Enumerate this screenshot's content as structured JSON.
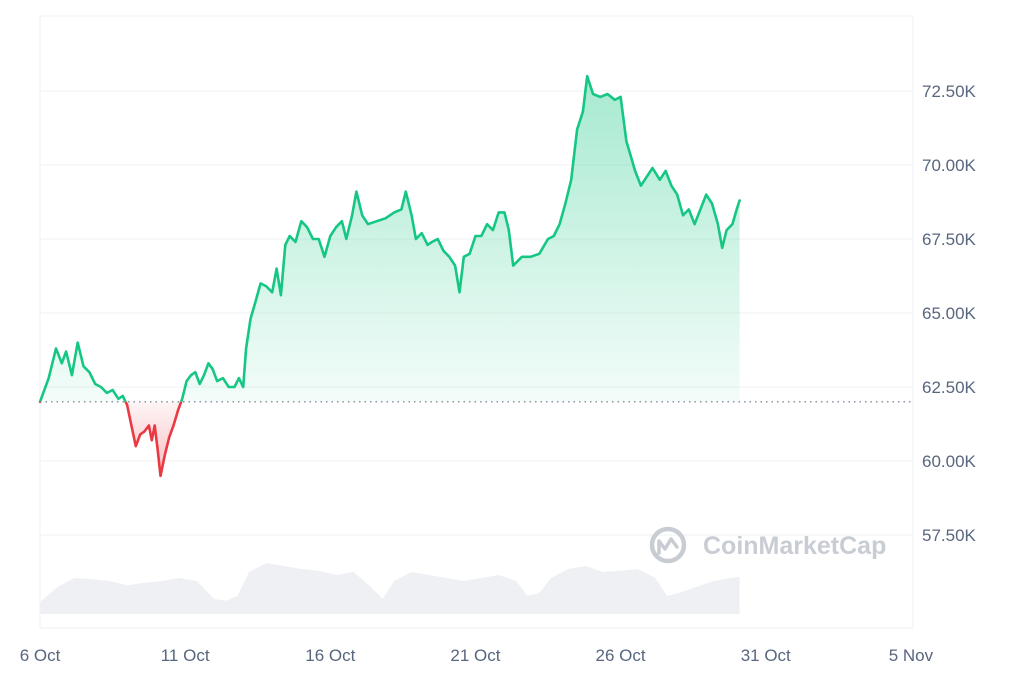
{
  "chart_data": {
    "type": "area",
    "title": "",
    "xlabel": "",
    "ylabel": "",
    "x_range": [
      "6 Oct",
      "6 Nov"
    ],
    "ylim": [
      55000,
      75000
    ],
    "baseline": 62000,
    "baseline_style": "dotted",
    "grid": "horizontal",
    "legend": "none",
    "y_axis_side": "right",
    "x_ticks": [
      {
        "label": "6 Oct",
        "day": 0
      },
      {
        "label": "11 Oct",
        "day": 5
      },
      {
        "label": "16 Oct",
        "day": 10
      },
      {
        "label": "21 Oct",
        "day": 15
      },
      {
        "label": "26 Oct",
        "day": 20
      },
      {
        "label": "31 Oct",
        "day": 25
      },
      {
        "label": "5 Nov",
        "day": 30
      }
    ],
    "y_ticks": [
      {
        "label": "57.50K",
        "value": 57500
      },
      {
        "label": "60.00K",
        "value": 60000
      },
      {
        "label": "62.50K",
        "value": 62500
      },
      {
        "label": "65.00K",
        "value": 65000
      },
      {
        "label": "67.50K",
        "value": 67500
      },
      {
        "label": "70.00K",
        "value": 70000
      },
      {
        "label": "72.50K",
        "value": 72500
      }
    ],
    "series": [
      {
        "points": [
          [
            0.0,
            62000
          ],
          [
            0.3,
            62800
          ],
          [
            0.55,
            63800
          ],
          [
            0.75,
            63300
          ],
          [
            0.9,
            63700
          ],
          [
            1.1,
            62900
          ],
          [
            1.3,
            64000
          ],
          [
            1.5,
            63200
          ],
          [
            1.7,
            63000
          ],
          [
            1.9,
            62600
          ],
          [
            2.1,
            62500
          ],
          [
            2.3,
            62300
          ],
          [
            2.5,
            62400
          ],
          [
            2.7,
            62100
          ],
          [
            2.85,
            62200
          ],
          [
            3.0,
            61900
          ],
          [
            3.15,
            61200
          ],
          [
            3.3,
            60500
          ],
          [
            3.45,
            60900
          ],
          [
            3.6,
            61000
          ],
          [
            3.75,
            61200
          ],
          [
            3.85,
            60700
          ],
          [
            3.95,
            61200
          ],
          [
            4.05,
            60400
          ],
          [
            4.15,
            59500
          ],
          [
            4.3,
            60200
          ],
          [
            4.45,
            60800
          ],
          [
            4.6,
            61200
          ],
          [
            4.75,
            61700
          ],
          [
            4.9,
            62100
          ],
          [
            5.05,
            62700
          ],
          [
            5.2,
            62900
          ],
          [
            5.35,
            63000
          ],
          [
            5.5,
            62600
          ],
          [
            5.65,
            62900
          ],
          [
            5.8,
            63300
          ],
          [
            5.95,
            63100
          ],
          [
            6.1,
            62700
          ],
          [
            6.3,
            62800
          ],
          [
            6.5,
            62500
          ],
          [
            6.7,
            62500
          ],
          [
            6.85,
            62800
          ],
          [
            7.0,
            62500
          ],
          [
            7.1,
            63800
          ],
          [
            7.25,
            64800
          ],
          [
            7.4,
            65300
          ],
          [
            7.6,
            66000
          ],
          [
            7.8,
            65900
          ],
          [
            8.0,
            65700
          ],
          [
            8.15,
            66500
          ],
          [
            8.3,
            65600
          ],
          [
            8.45,
            67300
          ],
          [
            8.6,
            67600
          ],
          [
            8.8,
            67400
          ],
          [
            9.0,
            68100
          ],
          [
            9.2,
            67900
          ],
          [
            9.4,
            67500
          ],
          [
            9.6,
            67500
          ],
          [
            9.8,
            66900
          ],
          [
            10.0,
            67600
          ],
          [
            10.2,
            67900
          ],
          [
            10.4,
            68100
          ],
          [
            10.55,
            67500
          ],
          [
            10.75,
            68300
          ],
          [
            10.9,
            69100
          ],
          [
            11.1,
            68300
          ],
          [
            11.3,
            68000
          ],
          [
            11.6,
            68100
          ],
          [
            11.9,
            68200
          ],
          [
            12.2,
            68400
          ],
          [
            12.45,
            68500
          ],
          [
            12.6,
            69100
          ],
          [
            12.8,
            68300
          ],
          [
            12.95,
            67500
          ],
          [
            13.15,
            67700
          ],
          [
            13.35,
            67300
          ],
          [
            13.5,
            67400
          ],
          [
            13.7,
            67500
          ],
          [
            13.9,
            67100
          ],
          [
            14.1,
            66900
          ],
          [
            14.3,
            66600
          ],
          [
            14.45,
            65700
          ],
          [
            14.6,
            66900
          ],
          [
            14.8,
            67000
          ],
          [
            15.0,
            67600
          ],
          [
            15.2,
            67600
          ],
          [
            15.4,
            68000
          ],
          [
            15.6,
            67800
          ],
          [
            15.8,
            68400
          ],
          [
            16.0,
            68400
          ],
          [
            16.15,
            67800
          ],
          [
            16.3,
            66600
          ],
          [
            16.6,
            66900
          ],
          [
            16.9,
            66900
          ],
          [
            17.2,
            67000
          ],
          [
            17.5,
            67500
          ],
          [
            17.7,
            67600
          ],
          [
            17.9,
            68000
          ],
          [
            18.1,
            68700
          ],
          [
            18.3,
            69500
          ],
          [
            18.5,
            71200
          ],
          [
            18.7,
            71800
          ],
          [
            18.85,
            73000
          ],
          [
            19.05,
            72400
          ],
          [
            19.3,
            72300
          ],
          [
            19.55,
            72400
          ],
          [
            19.8,
            72200
          ],
          [
            20.0,
            72300
          ],
          [
            20.2,
            70800
          ],
          [
            20.35,
            70300
          ],
          [
            20.5,
            69800
          ],
          [
            20.7,
            69300
          ],
          [
            20.9,
            69600
          ],
          [
            21.1,
            69900
          ],
          [
            21.35,
            69500
          ],
          [
            21.55,
            69800
          ],
          [
            21.75,
            69300
          ],
          [
            21.95,
            69000
          ],
          [
            22.15,
            68300
          ],
          [
            22.35,
            68500
          ],
          [
            22.55,
            68000
          ],
          [
            22.75,
            68500
          ],
          [
            22.95,
            69000
          ],
          [
            23.15,
            68700
          ],
          [
            23.35,
            68000
          ],
          [
            23.5,
            67200
          ],
          [
            23.65,
            67800
          ],
          [
            23.85,
            68000
          ],
          [
            24.0,
            68500
          ],
          [
            24.1,
            68800
          ]
        ]
      }
    ],
    "volume": [
      {
        "day": 0.0,
        "value": 0.2
      },
      {
        "day": 0.6,
        "value": 0.45
      },
      {
        "day": 1.2,
        "value": 0.6
      },
      {
        "day": 1.8,
        "value": 0.58
      },
      {
        "day": 2.4,
        "value": 0.55
      },
      {
        "day": 3.0,
        "value": 0.48
      },
      {
        "day": 3.6,
        "value": 0.52
      },
      {
        "day": 4.2,
        "value": 0.55
      },
      {
        "day": 4.8,
        "value": 0.6
      },
      {
        "day": 5.4,
        "value": 0.55
      },
      {
        "day": 6.0,
        "value": 0.25
      },
      {
        "day": 6.4,
        "value": 0.22
      },
      {
        "day": 6.8,
        "value": 0.3
      },
      {
        "day": 7.2,
        "value": 0.7
      },
      {
        "day": 7.8,
        "value": 0.85
      },
      {
        "day": 8.4,
        "value": 0.8
      },
      {
        "day": 9.0,
        "value": 0.75
      },
      {
        "day": 9.6,
        "value": 0.72
      },
      {
        "day": 10.2,
        "value": 0.65
      },
      {
        "day": 10.8,
        "value": 0.7
      },
      {
        "day": 11.4,
        "value": 0.45
      },
      {
        "day": 11.8,
        "value": 0.25
      },
      {
        "day": 12.2,
        "value": 0.55
      },
      {
        "day": 12.8,
        "value": 0.7
      },
      {
        "day": 13.4,
        "value": 0.65
      },
      {
        "day": 14.0,
        "value": 0.6
      },
      {
        "day": 14.6,
        "value": 0.55
      },
      {
        "day": 15.2,
        "value": 0.6
      },
      {
        "day": 15.8,
        "value": 0.65
      },
      {
        "day": 16.4,
        "value": 0.55
      },
      {
        "day": 16.8,
        "value": 0.3
      },
      {
        "day": 17.2,
        "value": 0.35
      },
      {
        "day": 17.6,
        "value": 0.6
      },
      {
        "day": 18.2,
        "value": 0.75
      },
      {
        "day": 18.8,
        "value": 0.8
      },
      {
        "day": 19.4,
        "value": 0.7
      },
      {
        "day": 20.0,
        "value": 0.72
      },
      {
        "day": 20.6,
        "value": 0.75
      },
      {
        "day": 21.2,
        "value": 0.6
      },
      {
        "day": 21.6,
        "value": 0.3
      },
      {
        "day": 22.0,
        "value": 0.35
      },
      {
        "day": 22.6,
        "value": 0.45
      },
      {
        "day": 23.2,
        "value": 0.55
      },
      {
        "day": 23.8,
        "value": 0.6
      },
      {
        "day": 24.1,
        "value": 0.62
      }
    ],
    "colors": {
      "up_line": "#16c784",
      "down_line": "#ea3943",
      "up_fill": "#16c784",
      "down_fill": "#ea3943",
      "grid": "#eff2f5",
      "baseline": "#808a9d",
      "volume_fill": "#eef0f4",
      "tick_text": "#58667e"
    }
  },
  "watermark": {
    "text": "CoinMarketCap",
    "icon": "coinmarketcap-logo-icon",
    "color": "#c8ccd3"
  }
}
